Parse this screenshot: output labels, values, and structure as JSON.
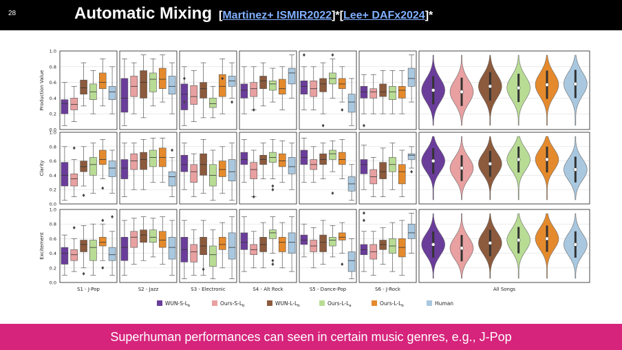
{
  "slide_number": "28",
  "title": {
    "main": "Automatic Mixing",
    "open1": "[",
    "ref1": "Martinez+ ISMIR2022",
    "mid": "]*[",
    "ref2": "Lee+ DAFx2024",
    "close": "]*"
  },
  "footer": "Superhuman performances can seen in certain music genres, e.g., J-Pop",
  "colors": {
    "top_bar": "#000000",
    "bottom_bar": "#d6247c",
    "link": "#7fb0ff"
  },
  "chart_data": {
    "type": "boxplot",
    "metrics": [
      "Production Value",
      "Clarity",
      "Excitement"
    ],
    "genres": [
      "S1 - J-Pop",
      "S2 - Jazz",
      "S3 - Electronic",
      "S4 - Alt Rock",
      "S5 - Dance-Pop",
      "S6 - J-Rock"
    ],
    "all_label": "All Songs",
    "ylim": [
      0,
      1
    ],
    "yticks": [
      "0.0",
      "0.2",
      "0.4",
      "0.6",
      "0.8",
      "1.0"
    ],
    "legend": [
      {
        "label": "WUN-S-L",
        "sub": "b",
        "color": "#6a3d9a"
      },
      {
        "label": "Ours-S-L",
        "sub": "b",
        "color": "#e8a0a0"
      },
      {
        "label": "WUN-L-L",
        "sub": "b",
        "color": "#8c5a3c"
      },
      {
        "label": "Ours-L-L",
        "sub": "a",
        "color": "#b8dc94"
      },
      {
        "label": "Ours-L-L",
        "sub": "b",
        "color": "#e58a2c"
      },
      {
        "label": "Human",
        "sub": "",
        "color": "#a9c8e0"
      }
    ],
    "boxes": [
      [
        [
          [
            0.2,
            0.33,
            0.38,
            0.05,
            0.6
          ],
          [
            0.25,
            0.32,
            0.4,
            0.1,
            0.55
          ],
          [
            0.45,
            0.53,
            0.63,
            0.3,
            0.85
          ],
          [
            0.38,
            0.48,
            0.58,
            0.2,
            0.75
          ],
          [
            0.52,
            0.6,
            0.72,
            0.3,
            0.9
          ],
          [
            0.38,
            0.48,
            0.55,
            0.2,
            0.8
          ]
        ],
        [
          [
            0.22,
            0.4,
            0.65,
            0.05,
            0.9
          ],
          [
            0.42,
            0.55,
            0.68,
            0.2,
            0.85
          ],
          [
            0.4,
            0.6,
            0.75,
            0.15,
            0.95
          ],
          [
            0.48,
            0.64,
            0.72,
            0.3,
            0.9
          ],
          [
            0.52,
            0.64,
            0.78,
            0.35,
            0.95
          ],
          [
            0.45,
            0.55,
            0.68,
            0.2,
            0.85
          ]
        ],
        [
          [
            0.25,
            0.45,
            0.58,
            0.05,
            0.8
          ],
          [
            0.32,
            0.42,
            0.56,
            0.1,
            0.75
          ],
          [
            0.4,
            0.52,
            0.6,
            0.15,
            0.85
          ],
          [
            0.28,
            0.33,
            0.4,
            0.15,
            0.55
          ],
          [
            0.42,
            0.55,
            0.7,
            0.2,
            0.9
          ],
          [
            0.55,
            0.62,
            0.68,
            0.4,
            0.85
          ]
        ],
        [
          [
            0.4,
            0.5,
            0.58,
            0.2,
            0.8
          ],
          [
            0.42,
            0.52,
            0.6,
            0.25,
            0.8
          ],
          [
            0.52,
            0.62,
            0.68,
            0.3,
            0.85
          ],
          [
            0.5,
            0.58,
            0.62,
            0.35,
            0.78
          ],
          [
            0.45,
            0.52,
            0.64,
            0.25,
            0.8
          ],
          [
            0.58,
            0.72,
            0.78,
            0.4,
            0.95
          ]
        ],
        [
          [
            0.45,
            0.55,
            0.62,
            0.25,
            0.8
          ],
          [
            0.42,
            0.52,
            0.62,
            0.25,
            0.8
          ],
          [
            0.48,
            0.58,
            0.65,
            0.2,
            0.85
          ],
          [
            0.58,
            0.65,
            0.72,
            0.4,
            0.9
          ],
          [
            0.52,
            0.58,
            0.65,
            0.35,
            0.8
          ],
          [
            0.22,
            0.35,
            0.45,
            0.05,
            0.65
          ]
        ],
        [
          [
            0.4,
            0.48,
            0.55,
            0.2,
            0.7
          ],
          [
            0.4,
            0.48,
            0.52,
            0.2,
            0.7
          ],
          [
            0.42,
            0.48,
            0.58,
            0.2,
            0.75
          ],
          [
            0.38,
            0.48,
            0.55,
            0.2,
            0.75
          ],
          [
            0.4,
            0.5,
            0.55,
            0.2,
            0.75
          ],
          [
            0.55,
            0.65,
            0.78,
            0.35,
            0.95
          ]
        ]
      ],
      [
        [
          [
            0.25,
            0.4,
            0.58,
            0.05,
            0.8
          ],
          [
            0.25,
            0.35,
            0.42,
            0.1,
            0.62
          ],
          [
            0.45,
            0.52,
            0.6,
            0.25,
            0.8
          ],
          [
            0.4,
            0.55,
            0.65,
            0.15,
            0.85
          ],
          [
            0.55,
            0.62,
            0.75,
            0.35,
            0.9
          ],
          [
            0.38,
            0.5,
            0.6,
            0.15,
            0.75
          ]
        ],
        [
          [
            0.35,
            0.5,
            0.62,
            0.1,
            0.85
          ],
          [
            0.48,
            0.6,
            0.7,
            0.2,
            0.85
          ],
          [
            0.48,
            0.62,
            0.72,
            0.2,
            0.9
          ],
          [
            0.52,
            0.65,
            0.75,
            0.3,
            0.92
          ],
          [
            0.52,
            0.65,
            0.78,
            0.3,
            0.92
          ],
          [
            0.25,
            0.38,
            0.45,
            0.1,
            0.65
          ]
        ],
        [
          [
            0.45,
            0.55,
            0.68,
            0.2,
            0.85
          ],
          [
            0.3,
            0.45,
            0.55,
            0.1,
            0.7
          ],
          [
            0.4,
            0.55,
            0.7,
            0.15,
            0.9
          ],
          [
            0.25,
            0.4,
            0.55,
            0.05,
            0.75
          ],
          [
            0.38,
            0.48,
            0.6,
            0.15,
            0.8
          ],
          [
            0.32,
            0.45,
            0.62,
            0.05,
            0.85
          ]
        ],
        [
          [
            0.55,
            0.62,
            0.72,
            0.3,
            0.9
          ],
          [
            0.35,
            0.48,
            0.58,
            0.1,
            0.75
          ],
          [
            0.55,
            0.62,
            0.68,
            0.35,
            0.85
          ],
          [
            0.58,
            0.65,
            0.72,
            0.35,
            0.9
          ],
          [
            0.52,
            0.6,
            0.7,
            0.3,
            0.88
          ],
          [
            0.42,
            0.52,
            0.65,
            0.2,
            0.85
          ]
        ],
        [
          [
            0.55,
            0.65,
            0.75,
            0.3,
            0.92
          ],
          [
            0.48,
            0.55,
            0.62,
            0.3,
            0.8
          ],
          [
            0.55,
            0.62,
            0.7,
            0.35,
            0.85
          ],
          [
            0.62,
            0.7,
            0.75,
            0.45,
            0.88
          ],
          [
            0.55,
            0.62,
            0.72,
            0.35,
            0.9
          ],
          [
            0.18,
            0.28,
            0.38,
            0.05,
            0.55
          ]
        ],
        [
          [
            0.42,
            0.55,
            0.62,
            0.2,
            0.82
          ],
          [
            0.28,
            0.38,
            0.48,
            0.1,
            0.65
          ],
          [
            0.35,
            0.45,
            0.58,
            0.1,
            0.78
          ],
          [
            0.45,
            0.55,
            0.65,
            0.2,
            0.85
          ],
          [
            0.28,
            0.45,
            0.55,
            0.1,
            0.75
          ],
          [
            0.62,
            0.68,
            0.7,
            0.5,
            0.8
          ]
        ]
      ],
      [
        [
          [
            0.25,
            0.4,
            0.48,
            0.1,
            0.65
          ],
          [
            0.3,
            0.38,
            0.45,
            0.15,
            0.6
          ],
          [
            0.42,
            0.52,
            0.58,
            0.2,
            0.78
          ],
          [
            0.3,
            0.48,
            0.58,
            0.1,
            0.8
          ],
          [
            0.5,
            0.55,
            0.62,
            0.3,
            0.8
          ],
          [
            0.3,
            0.38,
            0.48,
            0.1,
            0.7
          ]
        ],
        [
          [
            0.3,
            0.48,
            0.62,
            0.1,
            0.85
          ],
          [
            0.48,
            0.62,
            0.7,
            0.25,
            0.88
          ],
          [
            0.55,
            0.65,
            0.72,
            0.3,
            0.9
          ],
          [
            0.55,
            0.62,
            0.72,
            0.35,
            0.88
          ],
          [
            0.48,
            0.58,
            0.7,
            0.25,
            0.9
          ],
          [
            0.32,
            0.48,
            0.62,
            0.1,
            0.85
          ]
        ],
        [
          [
            0.28,
            0.45,
            0.62,
            0.05,
            0.85
          ],
          [
            0.28,
            0.42,
            0.52,
            0.1,
            0.72
          ],
          [
            0.38,
            0.5,
            0.62,
            0.1,
            0.85
          ],
          [
            0.22,
            0.38,
            0.5,
            0.05,
            0.72
          ],
          [
            0.45,
            0.52,
            0.62,
            0.2,
            0.82
          ],
          [
            0.32,
            0.48,
            0.68,
            0.05,
            0.9
          ]
        ],
        [
          [
            0.45,
            0.55,
            0.68,
            0.15,
            0.9
          ],
          [
            0.38,
            0.45,
            0.52,
            0.2,
            0.7
          ],
          [
            0.42,
            0.52,
            0.62,
            0.2,
            0.82
          ],
          [
            0.6,
            0.68,
            0.72,
            0.4,
            0.9
          ],
          [
            0.42,
            0.55,
            0.62,
            0.2,
            0.82
          ],
          [
            0.4,
            0.55,
            0.68,
            0.15,
            0.9
          ]
        ],
        [
          [
            0.52,
            0.58,
            0.65,
            0.35,
            0.8
          ],
          [
            0.42,
            0.5,
            0.58,
            0.2,
            0.75
          ],
          [
            0.42,
            0.55,
            0.65,
            0.25,
            0.85
          ],
          [
            0.5,
            0.58,
            0.62,
            0.35,
            0.78
          ],
          [
            0.58,
            0.62,
            0.68,
            0.4,
            0.82
          ],
          [
            0.15,
            0.3,
            0.42,
            0.05,
            0.6
          ]
        ],
        [
          [
            0.38,
            0.45,
            0.52,
            0.15,
            0.7
          ],
          [
            0.32,
            0.42,
            0.52,
            0.1,
            0.7
          ],
          [
            0.45,
            0.52,
            0.58,
            0.25,
            0.75
          ],
          [
            0.4,
            0.5,
            0.6,
            0.15,
            0.82
          ],
          [
            0.35,
            0.48,
            0.6,
            0.1,
            0.85
          ],
          [
            0.6,
            0.68,
            0.8,
            0.4,
            0.95
          ]
        ]
      ]
    ],
    "outliers": [
      [
        [],
        [],
        [],
        [],
        [],
        [],
        [],
        [],
        [],
        [],
        [],
        [],
        [
          0.65,
          0.35
        ],
        [],
        [],
        [],
        [
          0.65
        ],
        [
          0.35
        ],
        [],
        [
          0.25
        ],
        [],
        [],
        [],
        [],
        [
          0.95
        ],
        [],
        [
          0.05
        ],
        [
          0.95
        ],
        [
          0.25
        ],
        [],
        [
          0.05
        ],
        [],
        [],
        [],
        [],
        []
      ],
      [
        [],
        [
          0.78
        ],
        [
          0.12
        ],
        [],
        [
          0.22
        ],
        [],
        [],
        [],
        [],
        [],
        [],
        [
          0.75
        ],
        [],
        [],
        [],
        [],
        [],
        [],
        [],
        [
          0.1
        ],
        [],
        [
          0.2,
          0.25
        ],
        [],
        [],
        [],
        [],
        [],
        [
          0.15
        ],
        [],
        [],
        [],
        [],
        [],
        [],
        [],
        [
          0.45
        ]
      ],
      [
        [],
        [
          0.75
        ],
        [
          0.12
        ],
        [],
        [
          0.85,
          0.2
        ],
        [
          0.9
        ],
        [],
        [],
        [],
        [],
        [],
        [],
        [],
        [],
        [
          0.18
        ],
        [],
        [],
        [],
        [],
        [],
        [],
        [
          0.25,
          0.3
        ],
        [],
        [],
        [],
        [],
        [],
        [],
        [
          0.25
        ],
        [],
        [
          0.95,
          0.85
        ],
        [],
        [],
        [],
        [],
        []
      ]
    ],
    "violin_means": [
      [
        0.5,
        0.48,
        0.55,
        0.53,
        0.57,
        0.58
      ],
      [
        0.6,
        0.5,
        0.56,
        0.62,
        0.62,
        0.48
      ],
      [
        0.52,
        0.47,
        0.54,
        0.58,
        0.6,
        0.52
      ]
    ]
  }
}
